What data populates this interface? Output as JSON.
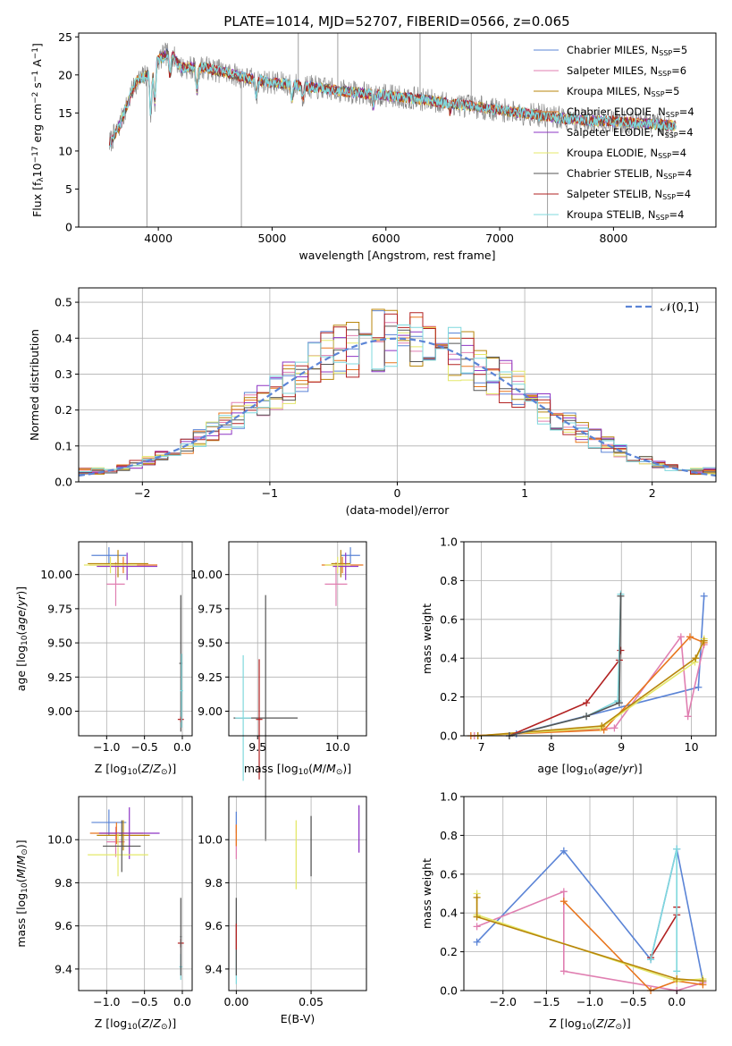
{
  "figure_title": "PLATE=1014, MJD=52707, FIBERID=0566, z=0.065",
  "models": [
    {
      "name": "Chabrier MILES",
      "nssp": "5",
      "color": "#5b84d6"
    },
    {
      "name": "Salpeter MILES",
      "nssp": "6",
      "color": "#e07fb1"
    },
    {
      "name": "Kroupa MILES",
      "nssp": "5",
      "color": "#b8860b"
    },
    {
      "name": "Chabrier ELODIE",
      "nssp": "4",
      "color": "#e8761e"
    },
    {
      "name": "Salpeter ELODIE",
      "nssp": "4",
      "color": "#8e35c4"
    },
    {
      "name": "Kroupa ELODIE",
      "nssp": "4",
      "color": "#e4e86a"
    },
    {
      "name": "Chabrier STELIB",
      "nssp": "4",
      "color": "#555555"
    },
    {
      "name": "Salpeter STELIB",
      "nssp": "4",
      "color": "#b22222"
    },
    {
      "name": "Kroupa STELIB",
      "nssp": "4",
      "color": "#7fd8dd"
    }
  ],
  "chart_data": [
    {
      "id": "spectrum",
      "type": "line",
      "title": "PLATE=1014, MJD=52707, FIBERID=0566, z=0.065",
      "xlabel": "wavelength [Angstrom, rest frame]",
      "ylabel": "Flux [f_λ10^-17 erg cm^-2 s^-1 A^-1]",
      "xlim": [
        3300,
        8900
      ],
      "ylim": [
        0,
        25.5
      ],
      "xticks": [
        "4000",
        "5000",
        "6000",
        "7000",
        "8000"
      ],
      "yticks": [
        "0",
        "5",
        "10",
        "15",
        "20",
        "25"
      ],
      "continuum": {
        "x": [
          3570,
          3650,
          3800,
          3900,
          4000,
          4100,
          4200,
          4400,
          4600,
          4800,
          5000,
          5200,
          5400,
          5600,
          5800,
          6000,
          6200,
          6400,
          6600,
          6800,
          7000,
          7200,
          7400,
          7600,
          7800,
          8000,
          8200,
          8400,
          8550
        ],
        "y": [
          11,
          13,
          19,
          20,
          22,
          23,
          21,
          21,
          20.3,
          19.5,
          19,
          18.7,
          18.3,
          17.9,
          17.6,
          17.3,
          17,
          16.6,
          16.2,
          15.8,
          15.4,
          15,
          14.6,
          14.2,
          14,
          13.9,
          13.7,
          13.5,
          13.3
        ]
      }
    },
    {
      "id": "residual-histogram",
      "type": "histogram",
      "xlabel": "(data-model)/error",
      "ylabel": "Normed distribution",
      "xlim": [
        -2.5,
        2.5
      ],
      "ylim": [
        0,
        0.54
      ],
      "xticks": [
        "−2",
        "−1",
        "0",
        "1",
        "2"
      ],
      "yticks": [
        "0.0",
        "0.1",
        "0.2",
        "0.3",
        "0.4",
        "0.5"
      ],
      "bin_width": 0.1,
      "reference_curve": {
        "name": "𝒩(0,1)",
        "mean": 0,
        "sigma": 1
      }
    },
    {
      "id": "age-vs-metallicity",
      "type": "scatter",
      "xlabel": "Z [log10(Z/Z⊙)]",
      "ylabel": "age [log10(age/yr)]",
      "xlim": [
        -1.37,
        0.13
      ],
      "ylim": [
        8.82,
        10.24
      ],
      "xticks": [
        "−1.0",
        "−0.5",
        "0.0"
      ],
      "yticks": [
        "9.00",
        "9.25",
        "9.50",
        "9.75",
        "10.00"
      ],
      "points": [
        {
          "model": 0,
          "x": -0.97,
          "y": 10.14,
          "xerr": 0.23,
          "yerr": 0.06
        },
        {
          "model": 1,
          "x": -0.88,
          "y": 9.93,
          "xerr": 0.12,
          "yerr": 0.16
        },
        {
          "model": 2,
          "x": -0.85,
          "y": 10.08,
          "xerr": 0.4,
          "yerr": 0.1
        },
        {
          "model": 3,
          "x": -0.78,
          "y": 10.07,
          "xerr": 0.45,
          "yerr": 0.06
        },
        {
          "model": 4,
          "x": -0.73,
          "y": 10.06,
          "xerr": 0.4,
          "yerr": 0.1
        },
        {
          "model": 5,
          "x": -0.95,
          "y": 10.07,
          "xerr": 0.35,
          "yerr": 0.06
        },
        {
          "model": 6,
          "x": -0.02,
          "y": 9.35,
          "xerr": 0.02,
          "yerr": 0.5
        },
        {
          "model": 7,
          "x": -0.02,
          "y": 8.94,
          "xerr": 0.04,
          "yerr": 0.02
        },
        {
          "model": 8,
          "x": -0.01,
          "y": 9.15,
          "xerr": 0.02,
          "yerr": 0.27
        }
      ]
    },
    {
      "id": "age-vs-mass",
      "type": "scatter",
      "xlabel": "mass [log10(M/M⊙)]",
      "ylabel": "",
      "xlim": [
        9.32,
        10.18
      ],
      "ylim": [
        8.82,
        10.24
      ],
      "xticks": [
        "9.5",
        "10.0"
      ],
      "yticks": [
        "9.00",
        "9.25",
        "9.50",
        "9.75",
        "10.00"
      ],
      "points": [
        {
          "model": 0,
          "x": 10.08,
          "y": 10.14,
          "xerr": 0.06,
          "yerr": 0.06
        },
        {
          "model": 1,
          "x": 9.99,
          "y": 9.93,
          "xerr": 0.07,
          "yerr": 0.16
        },
        {
          "model": 2,
          "x": 10.02,
          "y": 10.08,
          "xerr": 0.06,
          "yerr": 0.1
        },
        {
          "model": 3,
          "x": 10.03,
          "y": 10.07,
          "xerr": 0.13,
          "yerr": 0.06
        },
        {
          "model": 4,
          "x": 10.05,
          "y": 10.06,
          "xerr": 0.08,
          "yerr": 0.1
        },
        {
          "model": 5,
          "x": 10.0,
          "y": 10.07,
          "xerr": 0.08,
          "yerr": 0.06
        },
        {
          "model": 6,
          "x": 9.55,
          "y": 8.95,
          "xerr": 0.2,
          "yerr": 0.9
        },
        {
          "model": 7,
          "x": 9.51,
          "y": 8.94,
          "xerr": 0.02,
          "yerr": 0.44
        },
        {
          "model": 8,
          "x": 9.41,
          "y": 8.95,
          "xerr": 0.05,
          "yerr": 0.46
        }
      ]
    },
    {
      "id": "weight-vs-age",
      "type": "line",
      "xlabel": "age [log10(age/yr)]",
      "ylabel": "mass weight",
      "xlim": [
        6.75,
        10.35
      ],
      "ylim": [
        0,
        1.0
      ],
      "xticks": [
        "7",
        "8",
        "9",
        "10"
      ],
      "yticks": [
        "0.0",
        "0.2",
        "0.4",
        "0.6",
        "0.8",
        "1.0"
      ],
      "series": [
        {
          "model": 0,
          "x": [
            7.5,
            10.1,
            10.18
          ],
          "y": [
            0.01,
            0.25,
            0.72
          ]
        },
        {
          "model": 1,
          "x": [
            6.9,
            8.9,
            9.85,
            9.95,
            10.18
          ],
          "y": [
            0.0,
            0.04,
            0.51,
            0.1,
            0.47
          ]
        },
        {
          "model": 3,
          "x": [
            6.85,
            8.75,
            9.98,
            10.18
          ],
          "y": [
            0.0,
            0.03,
            0.51,
            0.48
          ]
        },
        {
          "model": 5,
          "x": [
            6.95,
            8.7,
            10.05,
            10.18
          ],
          "y": [
            0.0,
            0.04,
            0.38,
            0.5
          ]
        },
        {
          "model": 2,
          "x": [
            6.95,
            8.72,
            10.06,
            10.18
          ],
          "y": [
            0.0,
            0.05,
            0.4,
            0.49
          ]
        },
        {
          "model": 7,
          "x": [
            7.4,
            8.5,
            8.97,
            8.99
          ],
          "y": [
            0.0,
            0.17,
            0.39,
            0.44
          ]
        },
        {
          "model": 8,
          "x": [
            7.4,
            8.5,
            8.95,
            8.99
          ],
          "y": [
            0.0,
            0.1,
            0.18,
            0.73
          ]
        },
        {
          "model": 6,
          "x": [
            7.4,
            8.5,
            8.97,
            8.99
          ],
          "y": [
            0.0,
            0.1,
            0.17,
            0.72
          ]
        }
      ]
    },
    {
      "id": "mass-vs-metallicity",
      "type": "scatter",
      "xlabel": "Z [log10(Z/Z⊙)]",
      "ylabel": "mass [log10(M/M⊙)]",
      "xlim": [
        -1.37,
        0.13
      ],
      "ylim": [
        9.3,
        10.2
      ],
      "xticks": [
        "−1.0",
        "−0.5",
        "0.0"
      ],
      "yticks": [
        "9.4",
        "9.6",
        "9.8",
        "10.0"
      ],
      "points": [
        {
          "model": 0,
          "x": -0.97,
          "y": 10.08,
          "xerr": 0.23,
          "yerr": 0.06
        },
        {
          "model": 1,
          "x": -0.88,
          "y": 9.99,
          "xerr": 0.12,
          "yerr": 0.07
        },
        {
          "model": 2,
          "x": -0.78,
          "y": 10.02,
          "xerr": 0.35,
          "yerr": 0.07
        },
        {
          "model": 3,
          "x": -0.87,
          "y": 10.03,
          "xerr": 0.35,
          "yerr": 0.05
        },
        {
          "model": 4,
          "x": -0.7,
          "y": 10.03,
          "xerr": 0.4,
          "yerr": 0.12
        },
        {
          "model": 5,
          "x": -0.85,
          "y": 9.93,
          "xerr": 0.4,
          "yerr": 0.1
        },
        {
          "model": 6,
          "x": -0.8,
          "y": 9.97,
          "xerr": 0.25,
          "yerr": 0.12
        },
        {
          "model": 7,
          "x": -0.02,
          "y": 9.52,
          "xerr": 0.04,
          "yerr": 0.02
        },
        {
          "model": 8,
          "x": -0.02,
          "y": 9.41,
          "xerr": 0.02,
          "yerr": 0.06
        },
        {
          "model": 6,
          "x": -0.02,
          "y": 9.55,
          "xerr": 0.01,
          "yerr": 0.18
        }
      ]
    },
    {
      "id": "mass-vs-extinction",
      "type": "scatter",
      "xlabel": "E(B-V)",
      "ylabel": "",
      "xlim": [
        -0.005,
        0.087
      ],
      "ylim": [
        9.3,
        10.2
      ],
      "xticks": [
        "0.00",
        "0.05"
      ],
      "yticks": [
        "9.4",
        "9.6",
        "9.8",
        "10.0"
      ],
      "points": [
        {
          "model": 0,
          "x": 0.0,
          "y": 10.08,
          "yerr": 0.05
        },
        {
          "model": 1,
          "x": 0.0,
          "y": 9.99,
          "yerr": 0.08
        },
        {
          "model": 3,
          "x": 0.0,
          "y": 10.02,
          "yerr": 0.05
        },
        {
          "model": 8,
          "x": 0.0,
          "y": 9.41,
          "yerr": 0.08
        },
        {
          "model": 6,
          "x": 0.0,
          "y": 9.55,
          "yerr": 0.18
        },
        {
          "model": 7,
          "x": 0.0,
          "y": 9.55,
          "yerr": 0.06
        },
        {
          "model": 5,
          "x": 0.04,
          "y": 9.93,
          "yerr": 0.16
        },
        {
          "model": 6,
          "x": 0.05,
          "y": 9.97,
          "yerr": 0.14
        },
        {
          "model": 4,
          "x": 0.082,
          "y": 10.05,
          "yerr": 0.11
        }
      ]
    },
    {
      "id": "weight-vs-metallicity",
      "type": "line",
      "xlabel": "Z [log10(Z/Z⊙)]",
      "ylabel": "mass weight",
      "xlim": [
        -2.45,
        0.45
      ],
      "ylim": [
        0,
        1.0
      ],
      "xticks": [
        "−2.0",
        "−1.5",
        "−1.0",
        "−0.5",
        "0.0"
      ],
      "yticks": [
        "0.0",
        "0.2",
        "0.4",
        "0.6",
        "0.8",
        "1.0"
      ],
      "series": [
        {
          "model": 0,
          "x": [
            -2.3,
            -1.3,
            -0.3,
            0.0,
            0.3
          ],
          "y": [
            0.25,
            0.72,
            0.16,
            0.73,
            0.05
          ]
        },
        {
          "model": 1,
          "x": [
            -2.3,
            -1.3,
            -1.3,
            0.0,
            0.3
          ],
          "y": [
            0.33,
            0.51,
            0.1,
            0.0,
            0.04
          ]
        },
        {
          "model": 3,
          "x": [
            -1.3,
            -0.3,
            0.0,
            0.3
          ],
          "y": [
            0.46,
            0.0,
            0.05,
            0.03
          ]
        },
        {
          "model": 5,
          "x": [
            -2.3,
            -2.3,
            0.0,
            0.3
          ],
          "y": [
            0.5,
            0.39,
            0.05,
            0.06
          ]
        },
        {
          "model": 2,
          "x": [
            -2.3,
            -2.3,
            0.0,
            0.3
          ],
          "y": [
            0.48,
            0.38,
            0.06,
            0.05
          ]
        },
        {
          "model": 7,
          "x": [
            -0.3,
            0.0,
            0.0
          ],
          "y": [
            0.17,
            0.39,
            0.43
          ]
        },
        {
          "model": 8,
          "x": [
            -0.3,
            0.0,
            0.0
          ],
          "y": [
            0.16,
            0.73,
            0.1
          ]
        }
      ]
    }
  ]
}
